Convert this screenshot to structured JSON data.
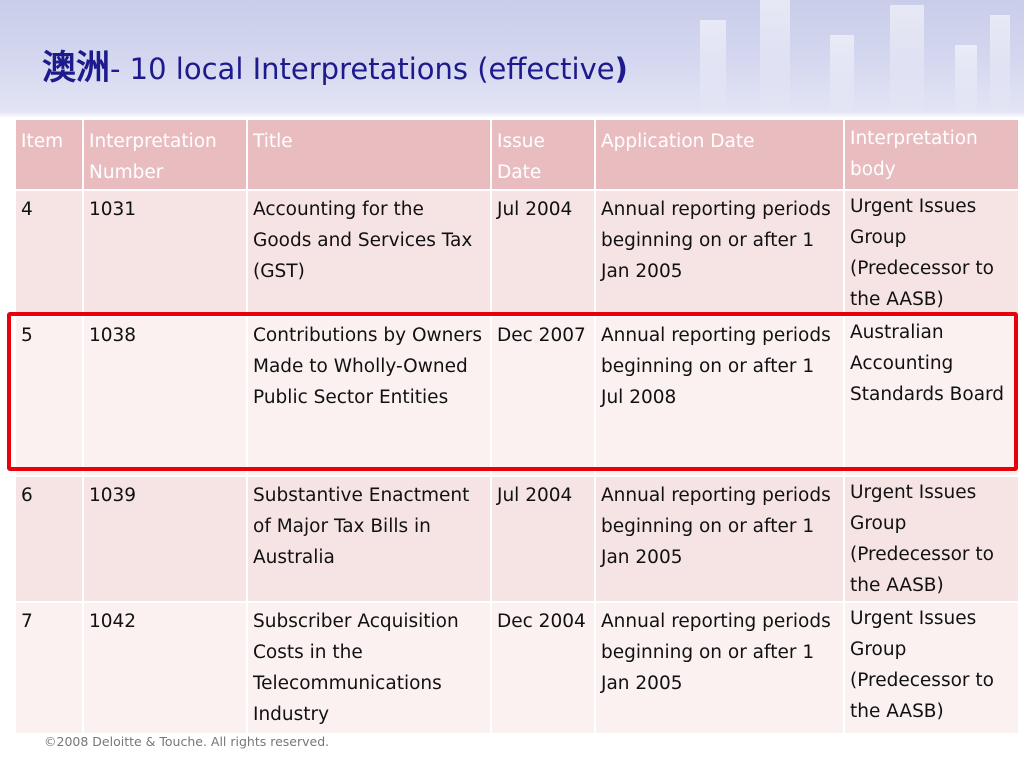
{
  "slide": {
    "title_cjk": "澳洲",
    "title_main": "- 10 local Interpretations (effective",
    "title_close": ")"
  },
  "table": {
    "headers": [
      "Item",
      "Interpretation Number",
      "Title",
      "Issue Date",
      "Application Date",
      "Interpretation body"
    ],
    "rows": [
      {
        "item": "4",
        "number": "1031",
        "title": "Accounting for the Goods and Services Tax (GST)",
        "issue_date": "Jul 2004",
        "application_date": "Annual reporting periods beginning on or after 1 Jan 2005",
        "body": "Urgent Issues Group (Predecessor to the AASB)"
      },
      {
        "item": "5",
        "number": "1038",
        "title": "Contributions by Owners Made to Wholly-Owned Public Sector Entities",
        "issue_date": "Dec 2007",
        "application_date": "Annual reporting periods beginning on or after 1 Jul 2008",
        "body": "Australian Accounting Standards Board"
      },
      {
        "item": "6",
        "number": "1039",
        "title": "Substantive Enactment of Major Tax Bills in Australia",
        "issue_date": "Jul 2004",
        "application_date": "Annual reporting periods beginning on or after 1 Jan 2005",
        "body": "Urgent Issues Group (Predecessor to the AASB)"
      },
      {
        "item": "7",
        "number": "1042",
        "title": "Subscriber Acquisition Costs in the Telecommunications Industry",
        "issue_date": "Dec 2004",
        "application_date": "Annual reporting periods beginning on or after 1 Jan 2005",
        "body": "Urgent Issues Group (Predecessor to the AASB)"
      }
    ]
  },
  "highlight_color": "#e8000b",
  "header_color": "#e9bdc0",
  "footer": {
    "copyright": "©2008 Deloitte & Touche. All rights reserved."
  }
}
